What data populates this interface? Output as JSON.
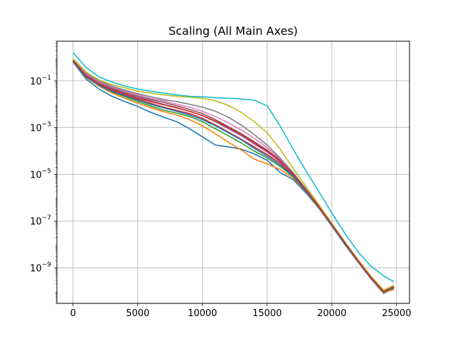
{
  "chart_data": {
    "type": "line",
    "title": "Scaling (All Main Axes)",
    "xlabel": "",
    "ylabel": "",
    "yscale": "log",
    "grid": true,
    "xlim": [
      -1250,
      26000
    ],
    "ylim": [
      3e-11,
      5
    ],
    "x_ticks": [
      {
        "value": 0,
        "label": "0"
      },
      {
        "value": 5000,
        "label": "5000"
      },
      {
        "value": 10000,
        "label": "10000"
      },
      {
        "value": 15000,
        "label": "15000"
      },
      {
        "value": 20000,
        "label": "20000"
      },
      {
        "value": 25000,
        "label": "25000"
      }
    ],
    "y_ticks": [
      {
        "value": 0.1,
        "base": "10",
        "exp": "−1"
      },
      {
        "value": 0.001,
        "base": "10",
        "exp": "−3"
      },
      {
        "value": 1e-05,
        "base": "10",
        "exp": "−5"
      },
      {
        "value": 1e-07,
        "base": "10",
        "exp": "−7"
      },
      {
        "value": 1e-09,
        "base": "10",
        "exp": "−9"
      }
    ],
    "x": [
      0,
      1000,
      2000,
      3000,
      4000,
      5000,
      6000,
      7000,
      8000,
      9000,
      10000,
      11000,
      12000,
      13000,
      14000,
      15000,
      16000,
      17000,
      18000,
      19000,
      20000,
      21000,
      22000,
      23000,
      24000,
      24800
    ],
    "series": [
      {
        "color": "#1f77b4",
        "values": [
          0.65,
          0.12,
          0.045,
          0.022,
          0.013,
          0.008,
          0.0045,
          0.0028,
          0.0018,
          0.0009,
          0.0004,
          0.00018,
          0.00015,
          0.00012,
          7.5e-05,
          4e-05,
          1.2e-05,
          6e-06,
          1.6e-06,
          3.5e-07,
          6e-08,
          1e-08,
          1.8e-09,
          3.5e-10,
          8e-11,
          1.3e-10
        ]
      },
      {
        "color": "#ff7f0e",
        "values": [
          0.7,
          0.14,
          0.06,
          0.03,
          0.018,
          0.011,
          0.0072,
          0.0048,
          0.0035,
          0.0022,
          0.0012,
          0.00055,
          0.00024,
          0.00011,
          4.5e-05,
          2.8e-05,
          1.6e-05,
          7e-06,
          1.8e-06,
          3.7e-07,
          6.4e-08,
          1.1e-08,
          1.9e-09,
          3.7e-10,
          8.5e-11,
          1.2e-10
        ]
      },
      {
        "color": "#2ca02c",
        "values": [
          0.68,
          0.15,
          0.065,
          0.034,
          0.021,
          0.013,
          0.0085,
          0.0056,
          0.0042,
          0.003,
          0.0018,
          0.0009,
          0.00045,
          0.00022,
          0.0001,
          5e-05,
          2.2e-05,
          8e-06,
          1.9e-06,
          3.8e-07,
          6.6e-08,
          1.1e-08,
          2e-09,
          3.8e-10,
          9e-11,
          1.4e-10
        ]
      },
      {
        "color": "#d62728",
        "values": [
          0.72,
          0.16,
          0.07,
          0.038,
          0.024,
          0.016,
          0.011,
          0.0075,
          0.0055,
          0.004,
          0.0025,
          0.0013,
          0.00065,
          0.00032,
          0.00015,
          7e-05,
          3e-05,
          9e-06,
          2e-06,
          4e-07,
          6.8e-08,
          1.15e-08,
          2e-09,
          3.9e-10,
          9.2e-11,
          1.5e-10
        ]
      },
      {
        "color": "#9467bd",
        "values": [
          0.75,
          0.18,
          0.08,
          0.045,
          0.03,
          0.02,
          0.014,
          0.01,
          0.0072,
          0.005,
          0.0032,
          0.0018,
          0.0009,
          0.00045,
          0.0002,
          9e-05,
          3.5e-05,
          1e-05,
          2.1e-06,
          4.1e-07,
          7e-08,
          1.2e-08,
          2.1e-09,
          4e-10,
          9.5e-11,
          1.5e-10
        ]
      },
      {
        "color": "#8c564b",
        "values": [
          0.8,
          0.19,
          0.085,
          0.05,
          0.032,
          0.022,
          0.016,
          0.012,
          0.0085,
          0.006,
          0.004,
          0.0022,
          0.0011,
          0.00055,
          0.00025,
          0.00011,
          4e-05,
          1.1e-05,
          2.2e-06,
          4.2e-07,
          7.2e-08,
          1.22e-08,
          2.15e-09,
          4.1e-10,
          9.8e-11,
          1.6e-10
        ]
      },
      {
        "color": "#e377c2",
        "values": [
          0.78,
          0.2,
          0.09,
          0.055,
          0.036,
          0.025,
          0.018,
          0.014,
          0.01,
          0.0075,
          0.005,
          0.003,
          0.0016,
          0.0008,
          0.00035,
          0.00014,
          4.5e-05,
          1.15e-05,
          2.3e-06,
          4.3e-07,
          7.4e-08,
          1.25e-08,
          2.2e-09,
          4.2e-10,
          1e-10,
          1.6e-10
        ]
      },
      {
        "color": "#7f7f7f",
        "values": [
          0.85,
          0.22,
          0.1,
          0.06,
          0.04,
          0.028,
          0.021,
          0.016,
          0.013,
          0.01,
          0.0075,
          0.005,
          0.0028,
          0.0013,
          0.0005,
          0.00018,
          5e-05,
          1.2e-05,
          2.4e-06,
          4.4e-07,
          7.6e-08,
          1.28e-08,
          2.25e-09,
          4.3e-10,
          1.05e-10,
          1.7e-10
        ]
      },
      {
        "color": "#bcbd22",
        "values": [
          0.9,
          0.24,
          0.11,
          0.07,
          0.05,
          0.036,
          0.03,
          0.025,
          0.022,
          0.02,
          0.018,
          0.014,
          0.009,
          0.0045,
          0.0018,
          0.0006,
          0.00012,
          1.8e-05,
          3e-06,
          5e-07,
          8e-08,
          1.3e-08,
          2.3e-09,
          4.5e-10,
          1.1e-10,
          1.8e-10
        ]
      },
      {
        "color": "#17becf",
        "values": [
          1.6,
          0.38,
          0.15,
          0.09,
          0.06,
          0.045,
          0.036,
          0.03,
          0.025,
          0.022,
          0.021,
          0.019,
          0.018,
          0.017,
          0.015,
          0.0085,
          0.0012,
          0.00012,
          1.4e-05,
          1.8e-06,
          2.2e-07,
          3e-08,
          5e-09,
          1.2e-09,
          4.5e-10,
          2.5e-10
        ]
      },
      {
        "color": "#1f77b4",
        "values": [
          0.7,
          0.15,
          0.065,
          0.036,
          0.023,
          0.015,
          0.01,
          0.007,
          0.005,
          0.0035,
          0.0022,
          0.0012,
          0.0006,
          0.0003,
          0.00013,
          6e-05,
          2.5e-05,
          8.5e-06,
          1.9e-06,
          3.9e-07,
          6.7e-08,
          1.12e-08,
          2e-09,
          3.9e-10,
          9.2e-11,
          1.45e-10
        ]
      },
      {
        "color": "#d62728",
        "values": [
          0.74,
          0.17,
          0.075,
          0.042,
          0.027,
          0.018,
          0.013,
          0.0095,
          0.007,
          0.005,
          0.0033,
          0.0019,
          0.001,
          0.0005,
          0.00022,
          0.0001,
          3.8e-05,
          1.05e-05,
          2.15e-06,
          4.15e-07,
          7.1e-08,
          1.2e-08,
          2.1e-09,
          4e-10,
          9.6e-11,
          1.55e-10
        ]
      }
    ]
  }
}
